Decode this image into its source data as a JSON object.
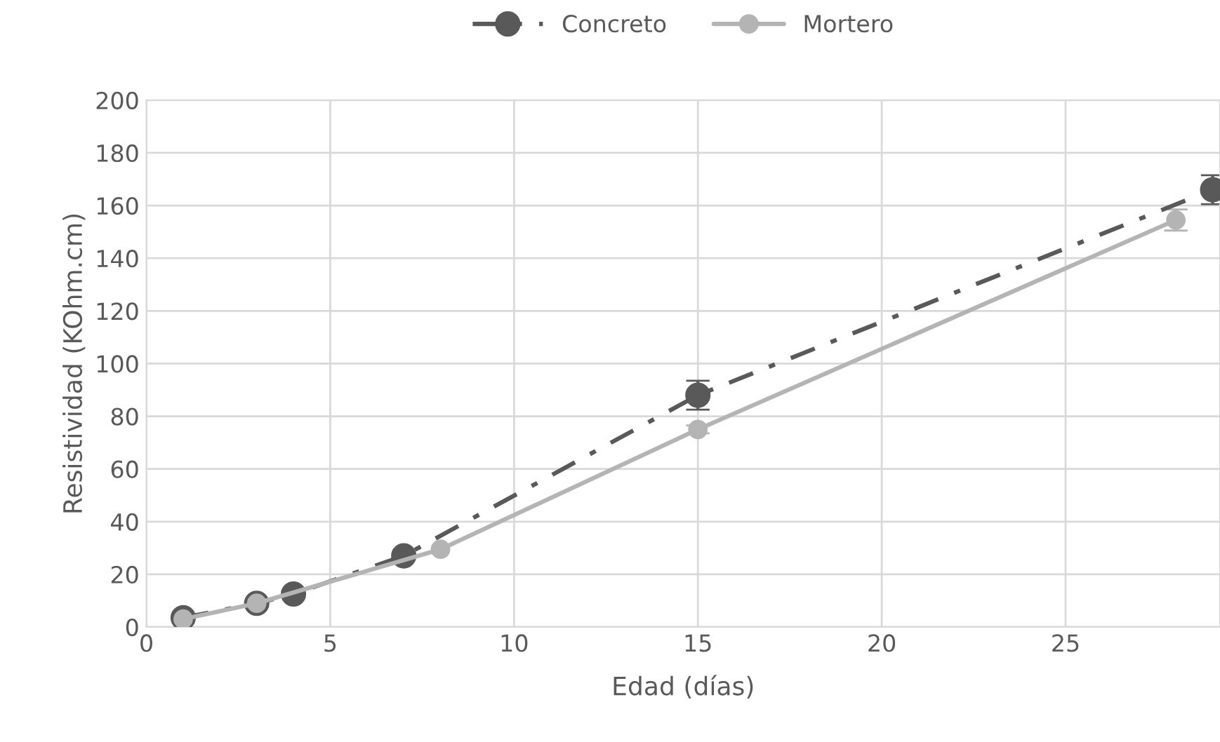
{
  "chart_data": {
    "type": "line",
    "xlabel": "Edad (días)",
    "ylabel": "Resistividad (KOhm.cm)",
    "xlim": [
      0,
      29.2
    ],
    "xticks": [
      0,
      5,
      10,
      15,
      20,
      25
    ],
    "ylim": [
      0,
      200
    ],
    "yticks": [
      0,
      20,
      40,
      60,
      80,
      100,
      120,
      140,
      160,
      180,
      200
    ],
    "grid": true,
    "legend": "top",
    "marker": "circle",
    "series": [
      {
        "name": "Concreto",
        "color": "#595959",
        "line_style": "dashed",
        "x": [
          1,
          3,
          4,
          7,
          15,
          29
        ],
        "values": [
          3.5,
          9,
          12.5,
          27,
          88,
          166
        ],
        "errors": [
          null,
          null,
          null,
          null,
          5.5,
          5.5
        ]
      },
      {
        "name": "Mortero",
        "color": "#b4b4b4",
        "line_style": "solid",
        "x": [
          1,
          3,
          8,
          15,
          28
        ],
        "values": [
          3,
          9,
          29.5,
          75,
          154.5
        ],
        "errors": [
          null,
          null,
          null,
          1.5,
          4
        ]
      }
    ]
  }
}
